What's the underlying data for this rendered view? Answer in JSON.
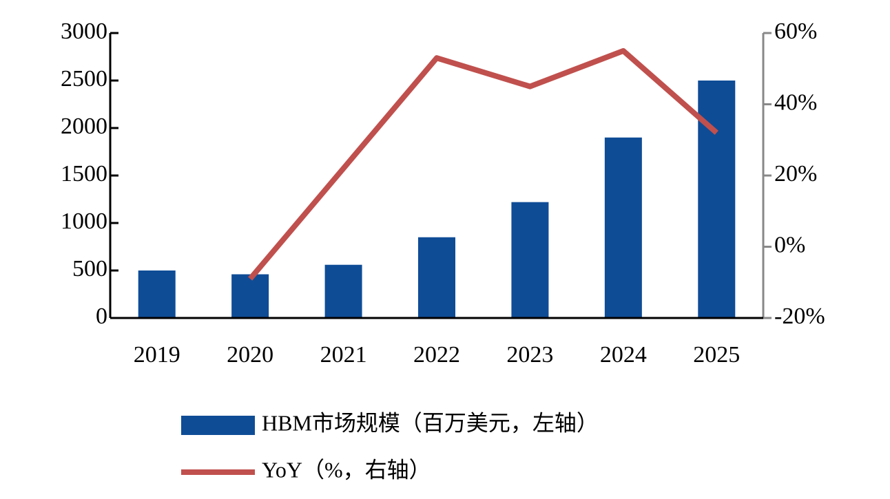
{
  "chart_data": {
    "type": "bar",
    "categories": [
      "2019",
      "2020",
      "2021",
      "2022",
      "2023",
      "2024",
      "2025"
    ],
    "series": [
      {
        "name": "HBM市场规模（百万美元，左轴）",
        "type": "bar",
        "color": "#0e4c96",
        "values": [
          500,
          460,
          560,
          850,
          1220,
          1900,
          2500
        ]
      },
      {
        "name": "YoY（%，右轴）",
        "type": "line",
        "axis": "y2",
        "color": "#c0504d",
        "values": [
          null,
          -9,
          22,
          53,
          45,
          55,
          32
        ]
      }
    ],
    "ylim": [
      0,
      3000
    ],
    "yticks": [
      0,
      500,
      1000,
      1500,
      2000,
      2500,
      3000
    ],
    "y2lim": [
      -20,
      60
    ],
    "y2ticks": [
      {
        "value": -20,
        "label": "-20%"
      },
      {
        "value": 0,
        "label": "0%"
      },
      {
        "value": 20,
        "label": "20%"
      },
      {
        "value": 40,
        "label": "40%"
      },
      {
        "value": 60,
        "label": "60%"
      }
    ]
  }
}
